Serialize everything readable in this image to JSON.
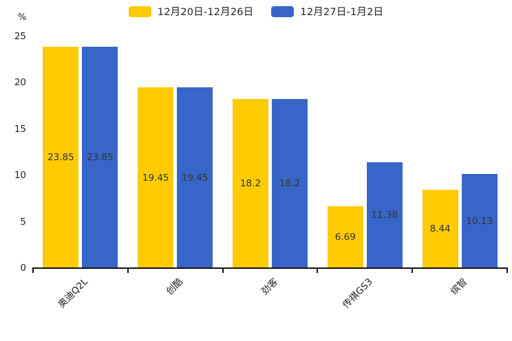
{
  "chart_data": {
    "type": "bar",
    "title": "",
    "xlabel": "",
    "ylabel": "%",
    "ylim": [
      0,
      25
    ],
    "yticks": [
      0,
      5,
      10,
      15,
      20,
      25
    ],
    "grid": false,
    "legend_position": "top-center",
    "value_labels": "centered-inside-bars",
    "categories": [
      "奥迪Q2L",
      "创酷",
      "劲客",
      "传祺GS3",
      "缤智"
    ],
    "series": [
      {
        "name": "12月20日-12月26日",
        "color": "#FECB02",
        "values": [
          23.85,
          19.45,
          18.2,
          6.69,
          8.44
        ]
      },
      {
        "name": "12月27日-1月2日",
        "color": "#3866C8",
        "values": [
          23.85,
          19.45,
          18.2,
          11.38,
          10.13
        ]
      }
    ]
  }
}
